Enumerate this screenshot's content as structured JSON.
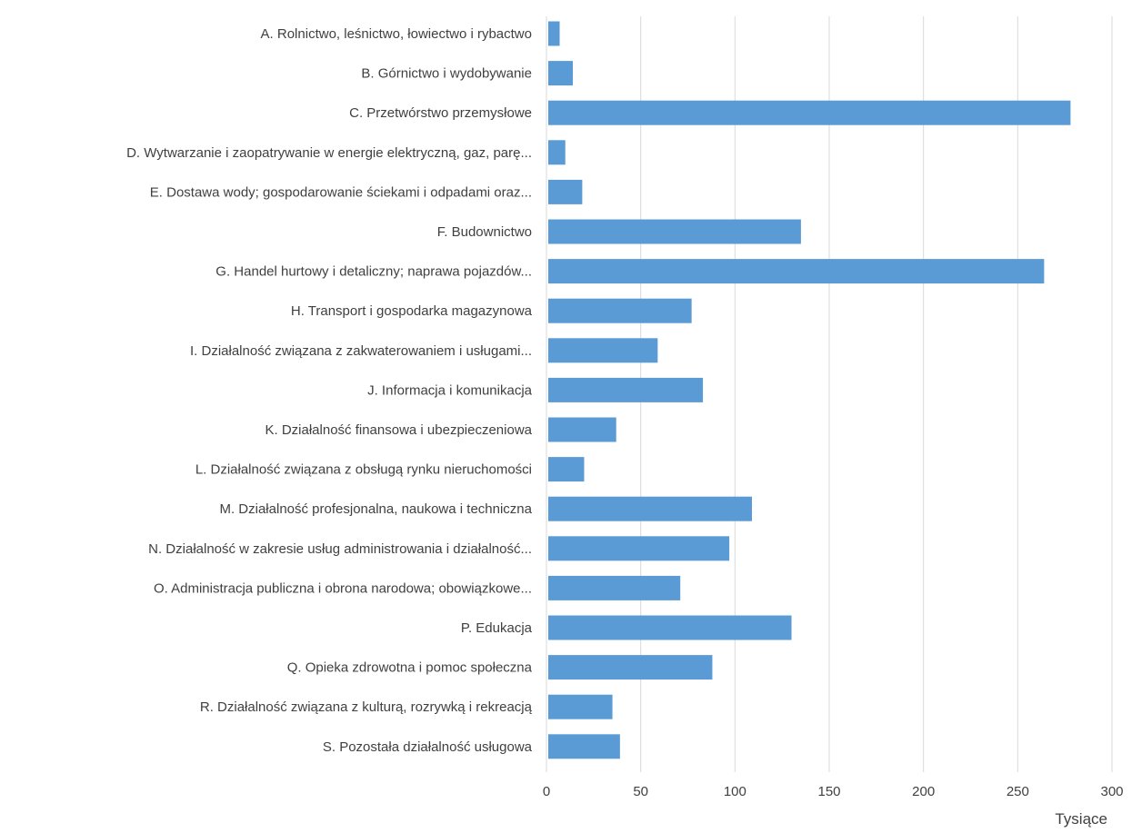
{
  "chart_data": {
    "type": "bar",
    "orientation": "horizontal",
    "categories": [
      "A. Rolnictwo, leśnictwo, łowiectwo i rybactwo",
      "B. Górnictwo i wydobywanie",
      "C. Przetwórstwo przemysłowe",
      "D. Wytwarzanie i zaopatrywanie w energie elektryczną, gaz, parę...",
      "E. Dostawa wody; gospodarowanie ściekami i odpadami oraz...",
      "F. Budownictwo",
      "G. Handel hurtowy i detaliczny; naprawa pojazdów...",
      "H. Transport i gospodarka magazynowa",
      "I. Działalność związana z zakwaterowaniem i usługami...",
      "J. Informacja i komunikacja",
      "K. Działalność finansowa i ubezpieczeniowa",
      "L. Działalność związana z obsługą rynku nieruchomości",
      "M. Działalność profesjonalna, naukowa i techniczna",
      "N. Działalność w zakresie usług administrowania i działalność...",
      "O. Administracja publiczna i obrona narodowa; obowiązkowe...",
      "P. Edukacja",
      "Q. Opieka zdrowotna i pomoc społeczna",
      "R. Działalność związana z kulturą, rozrywką i rekreacją",
      "S. Pozostała działalność usługowa"
    ],
    "values": [
      7,
      14,
      278,
      10,
      19,
      135,
      264,
      77,
      59,
      83,
      37,
      20,
      109,
      97,
      71,
      130,
      88,
      35,
      39
    ],
    "xlim": [
      0,
      300
    ],
    "xticks": [
      0,
      50,
      100,
      150,
      200,
      250,
      300
    ],
    "xticks_labels": [
      "0",
      "50",
      "100",
      "150",
      "200",
      "250",
      "300"
    ],
    "xlabel": "Tysiące",
    "title": "",
    "grid": "vertical",
    "bar_color": "#5b9bd5",
    "grid_color": "#d9d9d9",
    "text_color": "#404040"
  }
}
